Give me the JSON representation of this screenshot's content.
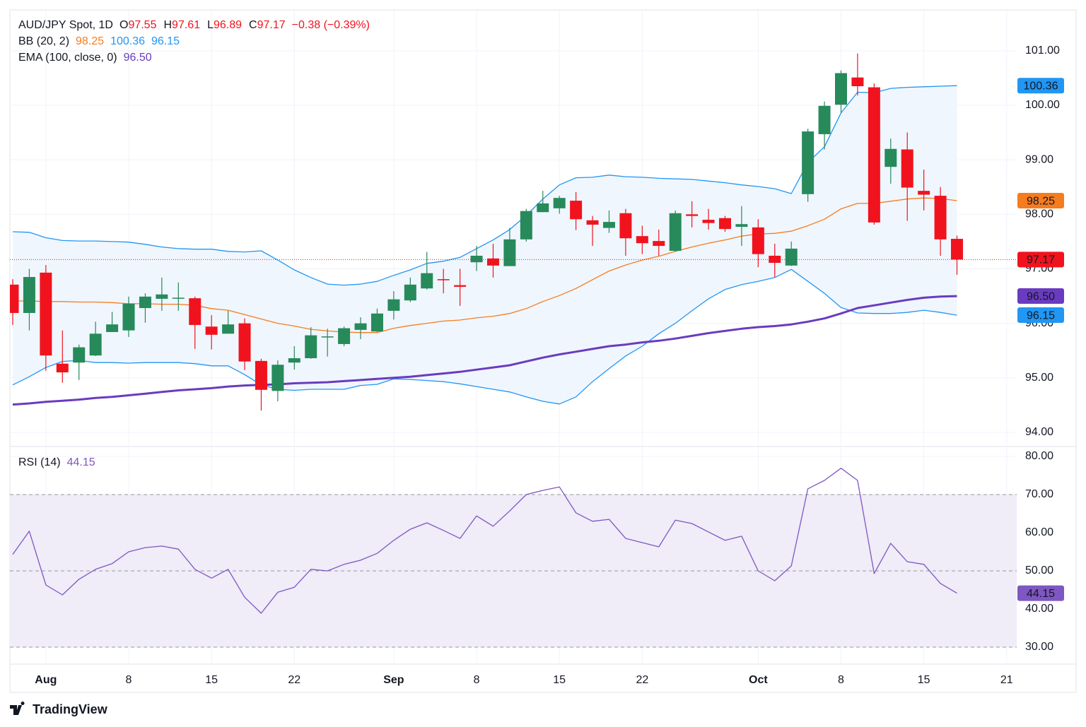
{
  "chart_data": [
    {
      "type": "candlestick",
      "title": "AUD/JPY Spot, 1D",
      "ohlc_letters": [
        "O",
        "H",
        "L",
        "C"
      ],
      "change": "−0.38 (−0.39%)",
      "categories": [
        null,
        null,
        "Aug",
        null,
        null,
        null,
        null,
        "8",
        null,
        null,
        null,
        null,
        "15",
        null,
        null,
        null,
        null,
        "22",
        null,
        null,
        null,
        null,
        null,
        "Sep",
        null,
        null,
        null,
        null,
        "8",
        null,
        null,
        null,
        null,
        "15",
        null,
        null,
        null,
        null,
        "22",
        null,
        null,
        null,
        null,
        null,
        null,
        "Oct",
        null,
        null,
        null,
        null,
        "8",
        null,
        null,
        null,
        null,
        "15",
        null,
        null,
        null,
        null,
        "21"
      ],
      "candles": {
        "up_color": "#278a5b",
        "down_color": "#f0131e",
        "open": [
          96.71,
          96.19,
          96.93,
          95.26,
          95.28,
          95.41,
          95.84,
          95.87,
          96.28,
          96.45,
          96.46,
          96.46,
          95.94,
          95.81,
          96.0,
          95.31,
          94.76,
          95.28,
          95.36,
          95.75,
          95.62,
          95.88,
          95.85,
          96.23,
          96.42,
          96.64,
          96.81,
          96.7,
          97.12,
          97.19,
          97.05,
          97.54,
          98.04,
          98.11,
          98.25,
          97.89,
          97.75,
          98.02,
          97.6,
          97.51,
          97.33,
          98.0,
          97.9,
          97.93,
          97.77,
          97.76,
          97.24,
          97.06,
          98.37,
          99.47,
          100.01,
          100.51,
          100.33,
          98.87,
          99.19,
          98.43,
          98.34,
          97.55,
          null,
          null,
          null
        ],
        "high": [
          96.81,
          97.0,
          97.07,
          95.87,
          95.61,
          96.03,
          96.21,
          96.49,
          96.55,
          96.84,
          96.75,
          96.49,
          96.15,
          96.23,
          96.09,
          95.35,
          95.32,
          95.58,
          95.93,
          95.9,
          95.94,
          96.11,
          96.27,
          96.59,
          96.84,
          97.31,
          97.0,
          97.0,
          97.42,
          97.46,
          97.75,
          98.1,
          98.43,
          98.34,
          98.41,
          97.97,
          98.07,
          98.1,
          97.79,
          97.72,
          98.07,
          98.24,
          98.1,
          97.97,
          98.15,
          97.91,
          97.46,
          97.5,
          99.57,
          100.07,
          100.64,
          100.95,
          100.4,
          99.39,
          99.5,
          98.82,
          98.5,
          97.61,
          null,
          null,
          null
        ],
        "low": [
          95.97,
          95.87,
          95.13,
          94.91,
          94.96,
          95.4,
          95.84,
          95.75,
          96.01,
          96.23,
          96.23,
          95.53,
          95.52,
          95.81,
          95.14,
          94.4,
          94.57,
          95.15,
          95.35,
          95.39,
          95.58,
          95.71,
          95.84,
          96.07,
          96.39,
          96.62,
          96.55,
          96.32,
          96.96,
          96.84,
          97.05,
          97.5,
          98.04,
          98.01,
          97.71,
          97.42,
          97.66,
          97.24,
          97.27,
          97.24,
          97.31,
          97.76,
          97.72,
          97.68,
          97.42,
          97.03,
          96.85,
          97.05,
          98.23,
          99.19,
          99.86,
          100.18,
          97.81,
          98.56,
          97.88,
          98.07,
          97.24,
          96.89,
          null,
          null,
          null
        ],
        "close": [
          96.19,
          96.85,
          95.41,
          95.1,
          95.56,
          95.81,
          95.98,
          96.36,
          96.49,
          96.53,
          96.47,
          95.97,
          95.79,
          95.98,
          95.3,
          94.78,
          95.24,
          95.36,
          95.78,
          95.76,
          95.91,
          96.0,
          96.18,
          96.44,
          96.71,
          96.92,
          96.79,
          96.67,
          97.24,
          97.06,
          97.54,
          98.06,
          98.2,
          98.3,
          97.91,
          97.81,
          97.86,
          97.56,
          97.47,
          97.42,
          98.02,
          97.97,
          97.84,
          97.73,
          97.82,
          97.27,
          97.11,
          97.37,
          99.52,
          99.99,
          100.59,
          100.35,
          97.85,
          99.2,
          98.49,
          98.36,
          97.54,
          97.17,
          null,
          null,
          null
        ]
      },
      "bands": {
        "name": "BB (20, 2)",
        "fill": "#f0f6fd",
        "basis": {
          "color": "#f57c1f",
          "values": [
            96.41,
            96.41,
            96.4,
            96.4,
            96.39,
            96.39,
            96.38,
            96.36,
            96.36,
            96.35,
            96.35,
            96.33,
            96.27,
            96.24,
            96.16,
            96.08,
            96.0,
            95.95,
            95.89,
            95.86,
            95.84,
            95.83,
            95.83,
            95.91,
            95.96,
            96.0,
            96.04,
            96.06,
            96.1,
            96.13,
            96.18,
            96.27,
            96.4,
            96.51,
            96.64,
            96.8,
            96.96,
            97.07,
            97.16,
            97.23,
            97.32,
            97.4,
            97.47,
            97.53,
            97.6,
            97.64,
            97.65,
            97.69,
            97.79,
            97.91,
            98.1,
            98.2,
            98.2,
            98.24,
            98.28,
            98.3,
            98.29,
            98.25,
            null,
            null,
            null
          ]
        },
        "upper": {
          "color": "#2196f3",
          "values": [
            97.68,
            97.67,
            97.57,
            97.52,
            97.51,
            97.51,
            97.5,
            97.49,
            97.45,
            97.4,
            97.37,
            97.36,
            97.36,
            97.32,
            97.31,
            97.33,
            97.16,
            96.98,
            96.84,
            96.72,
            96.7,
            96.72,
            96.77,
            96.88,
            96.98,
            97.1,
            97.14,
            97.21,
            97.37,
            97.53,
            97.72,
            97.98,
            98.28,
            98.54,
            98.67,
            98.68,
            98.72,
            98.69,
            98.68,
            98.66,
            98.65,
            98.64,
            98.61,
            98.58,
            98.54,
            98.51,
            98.47,
            98.38,
            98.95,
            99.24,
            99.86,
            100.24,
            100.23,
            100.31,
            100.33,
            100.34,
            100.35,
            100.36,
            null,
            null,
            null
          ]
        },
        "lower": {
          "color": "#2196f3",
          "values": [
            94.87,
            95.02,
            95.19,
            95.3,
            95.32,
            95.28,
            95.28,
            95.27,
            95.28,
            95.28,
            95.28,
            95.26,
            95.22,
            95.22,
            95.06,
            94.87,
            94.79,
            94.77,
            94.79,
            94.79,
            94.79,
            94.86,
            94.88,
            94.98,
            94.97,
            94.95,
            94.93,
            94.89,
            94.84,
            94.79,
            94.74,
            94.65,
            94.57,
            94.52,
            94.65,
            94.93,
            95.17,
            95.4,
            95.58,
            95.81,
            96.0,
            96.23,
            96.45,
            96.62,
            96.71,
            96.77,
            96.84,
            96.99,
            96.77,
            96.55,
            96.29,
            96.19,
            96.18,
            96.18,
            96.2,
            96.24,
            96.2,
            96.15,
            null,
            null,
            null
          ]
        }
      },
      "ema": {
        "name": "EMA (100, close, 0)",
        "color": "#6a3bc0",
        "values": [
          94.51,
          94.53,
          94.56,
          94.58,
          94.6,
          94.63,
          94.65,
          94.68,
          94.71,
          94.74,
          94.77,
          94.79,
          94.81,
          94.84,
          94.86,
          94.87,
          94.88,
          94.9,
          94.91,
          94.92,
          94.94,
          94.96,
          94.98,
          95.0,
          95.02,
          95.05,
          95.08,
          95.11,
          95.15,
          95.19,
          95.23,
          95.3,
          95.37,
          95.43,
          95.48,
          95.53,
          95.58,
          95.61,
          95.65,
          95.68,
          95.72,
          95.77,
          95.82,
          95.86,
          95.9,
          95.93,
          95.95,
          95.98,
          96.03,
          96.09,
          96.18,
          96.28,
          96.33,
          96.38,
          96.43,
          96.47,
          96.49,
          96.5,
          null,
          null,
          null
        ],
        "value_labels": [
          null,
          null,
          null,
          null,
          null,
          null,
          null,
          null,
          null,
          null,
          null,
          null,
          null,
          null,
          null,
          null,
          null,
          null,
          null,
          null,
          null,
          null,
          null,
          null,
          null,
          null,
          null,
          null,
          null,
          null,
          null,
          null,
          null,
          null,
          null,
          null,
          null,
          null,
          null,
          null,
          null,
          null,
          null,
          null,
          null,
          null,
          null,
          null,
          null,
          null,
          null,
          null,
          null,
          null,
          null,
          null,
          null,
          "96.50",
          null,
          null,
          null
        ]
      },
      "ylim": [
        93.74,
        101.75
      ],
      "yticks": [
        {
          "value": 94,
          "label": "94.00"
        },
        {
          "value": 95,
          "label": "95.00"
        },
        {
          "value": 96,
          "label": "96.00"
        },
        {
          "value": 97,
          "label": "97.00"
        },
        {
          "value": 98,
          "label": "98.00"
        },
        {
          "value": 99,
          "label": "99.00"
        },
        {
          "value": 100,
          "label": "100.00"
        },
        {
          "value": 101,
          "label": "101.00"
        }
      ],
      "grid": true
    },
    {
      "type": "line",
      "title": "RSI (14)",
      "color": "#7e57c2",
      "values": [
        54.3,
        60.4,
        46.3,
        43.7,
        47.8,
        50.4,
        51.9,
        55.0,
        56.1,
        56.5,
        55.7,
        50.4,
        48.1,
        50.4,
        43.1,
        38.9,
        44.4,
        45.7,
        50.4,
        50.0,
        51.7,
        52.8,
        54.6,
        58.0,
        60.9,
        62.6,
        60.6,
        58.5,
        64.4,
        61.7,
        65.7,
        70.0,
        71.1,
        72.0,
        65.2,
        63.0,
        63.5,
        58.5,
        57.4,
        56.3,
        63.3,
        62.4,
        60.2,
        58.0,
        59.1,
        50.0,
        47.4,
        51.3,
        71.5,
        73.7,
        76.9,
        73.7,
        49.3,
        57.2,
        52.4,
        51.7,
        46.7,
        44.15,
        null,
        null,
        null
      ],
      "ylim": [
        25.56,
        82.59
      ],
      "yticks": [
        {
          "value": 30,
          "label": "30.00"
        },
        {
          "value": 40,
          "label": "40.00"
        },
        {
          "value": 50,
          "label": "50.00"
        },
        {
          "value": 60,
          "label": "60.00"
        },
        {
          "value": 70,
          "label": "70.00"
        },
        {
          "value": 80,
          "label": "80.00"
        }
      ],
      "levels": [
        30,
        50,
        70
      ],
      "band": [
        30,
        70
      ],
      "band_color": "#f0ecf8",
      "grid": true
    }
  ],
  "branding": "TradingView"
}
